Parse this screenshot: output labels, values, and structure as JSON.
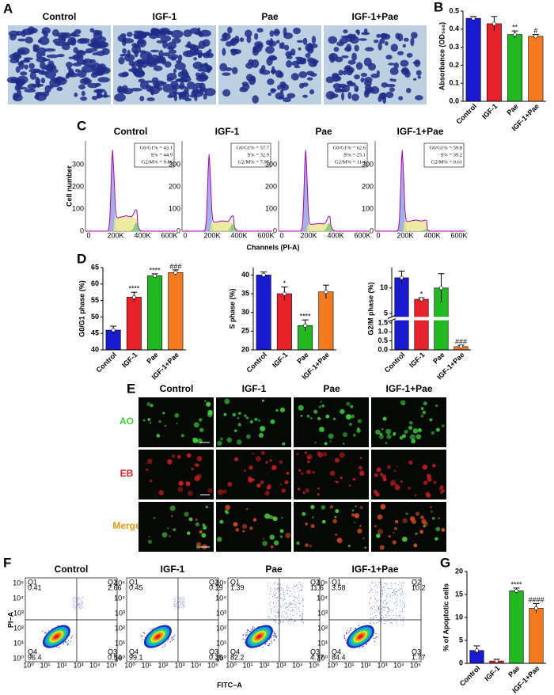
{
  "panel_labels": [
    "A",
    "B",
    "C",
    "D",
    "E",
    "F",
    "G"
  ],
  "panel_a": {
    "titles": [
      "Control",
      "IGF-1",
      "Pae",
      "IGF-1+Pae"
    ]
  },
  "panel_c": {
    "titles": [
      "Control",
      "IGF-1",
      "Pae",
      "IGF-1+Pae"
    ],
    "stats": [
      [
        "G0/G1% = 43.1",
        "S% = 44.9",
        "G2/M% = 9.86"
      ],
      [
        "G0/G1% = 57.7",
        "S% = 32.9",
        "G2/M% = 7.97"
      ],
      [
        "G0/G1% = 62.6",
        "S% = 25.1",
        "G2/M% = 11.4"
      ],
      [
        "G0/G1% = 59.8",
        "S% = 39.2",
        "G2/M% = 0.61"
      ]
    ],
    "y_label": "Cell number",
    "x_label": "Channels (PI-A)",
    "x_tick_labels": [
      "0",
      "200K",
      "400K",
      "600K"
    ],
    "y_tick_labels": [
      "0",
      "100",
      "200",
      "300"
    ]
  },
  "panel_e": {
    "titles": [
      "Control",
      "IGF-1",
      "Pae",
      "IGF-1+Pae"
    ],
    "rows": [
      "AO",
      "EB",
      "Merge"
    ]
  },
  "panel_f": {
    "titles": [
      "Control",
      "IGF-1",
      "Pae",
      "IGF-1+Pae"
    ],
    "quadrant_names": [
      "Q1",
      "Q2",
      "Q3",
      "Q4"
    ],
    "quadrants": [
      [
        0.41,
        2.66,
        0.54,
        96.4
      ],
      [
        0.45,
        0.19,
        0.25,
        99.1
      ],
      [
        1.39,
        11.6,
        4.77,
        82.2
      ],
      [
        3.58,
        10.2,
        1.77,
        84.4
      ]
    ],
    "x_label": "FITC−A",
    "y_label": "PI−A",
    "tick_labels": [
      "10⁰",
      "10¹",
      "10²",
      "10³",
      "10⁴",
      "10⁵"
    ]
  },
  "chart_data": [
    {
      "type": "bar",
      "y_label": "Absorbance (OD₅₆₀)",
      "categories": [
        "Control",
        "IGF-1",
        "Pae",
        "IGF-1+Pae"
      ],
      "values": [
        0.46,
        0.43,
        0.37,
        0.36
      ],
      "errors": [
        0.01,
        0.04,
        0.02,
        0.01
      ],
      "colors": [
        "#1a1ad0",
        "#e8222a",
        "#22b822",
        "#f47a20"
      ],
      "annotations": [
        null,
        null,
        "**",
        "#"
      ],
      "ylim": [
        0,
        0.5
      ],
      "yticks": [
        {
          "value": 0,
          "label": "0.0"
        },
        0.1,
        0.2,
        0.3,
        0.4,
        0.5
      ]
    },
    {
      "type": "bar",
      "y_label": "G0/G1 phase (%)",
      "categories": [
        "Control",
        "IGF-1",
        "Pae",
        "IGF-1+Pae"
      ],
      "values": [
        46,
        56,
        62.5,
        63.5
      ],
      "errors": [
        1.2,
        1.5,
        0.6,
        0.8
      ],
      "colors": [
        "#1a1ad0",
        "#e8222a",
        "#22b822",
        "#f47a20"
      ],
      "annotations": [
        null,
        "****",
        "****",
        "###"
      ],
      "ylim": [
        40,
        65
      ],
      "yticks": [
        40,
        45,
        50,
        55,
        60,
        65
      ]
    },
    {
      "type": "bar",
      "y_label": "S phase (%)",
      "categories": [
        "Control",
        "IGF-1",
        "Pae",
        "IGF-1+Pae"
      ],
      "values": [
        40,
        35,
        26.5,
        35.5
      ],
      "errors": [
        0.8,
        1.8,
        1.5,
        1.8
      ],
      "colors": [
        "#1a1ad0",
        "#e8222a",
        "#22b822",
        "#f47a20"
      ],
      "annotations": [
        null,
        "*",
        "****",
        null
      ],
      "ylim": [
        20,
        42
      ],
      "yticks": [
        20,
        25,
        30,
        35,
        40
      ]
    },
    {
      "type": "bar",
      "y_label": "G2/M phase (%)",
      "categories": [
        "Control",
        "IGF-1",
        "Pae",
        "IGF-1+Pae"
      ],
      "values": [
        12,
        7.8,
        10,
        0.18
      ],
      "errors": [
        1.3,
        0.3,
        2.8,
        0.08
      ],
      "colors": [
        "#1a1ad0",
        "#e8222a",
        "#22b822",
        "#f47a20"
      ],
      "annotations": [
        null,
        "*",
        null,
        "###"
      ],
      "ylim": [
        0,
        14
      ],
      "y_break": [
        1.6,
        4.5
      ],
      "yticks": [
        {
          "value": 0,
          "label": "0.0"
        },
        {
          "value": 0.5,
          "label": "0.5"
        },
        {
          "value": 1,
          "label": "1.0"
        },
        {
          "value": 1.5,
          "label": "1.5"
        },
        5,
        10
      ]
    },
    {
      "type": "bar",
      "y_label": "% of Apoptotic cells",
      "categories": [
        "Control",
        "IGF-1",
        "Pae",
        "IGF-1+Pae"
      ],
      "values": [
        2.8,
        0.5,
        15.8,
        12
      ],
      "errors": [
        1,
        0.4,
        0.6,
        1
      ],
      "colors": [
        "#1a1ad0",
        "#e8222a",
        "#22b822",
        "#f47a20"
      ],
      "annotations": [
        null,
        null,
        "****",
        "####"
      ],
      "ylim": [
        0,
        20
      ],
      "yticks": [
        0,
        5,
        10,
        15,
        20
      ]
    }
  ]
}
